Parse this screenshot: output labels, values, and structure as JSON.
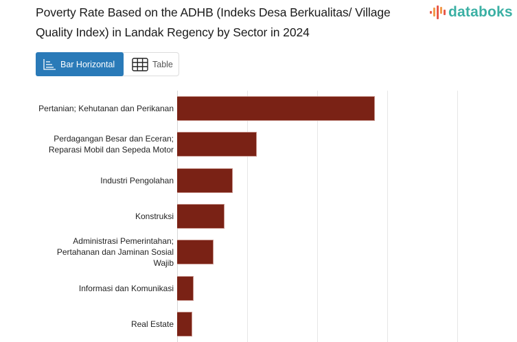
{
  "header": {
    "title": "Poverty Rate Based on the ADHB (Indeks Desa Berkualitas/ Village Quality Index) in Landak Regency by Sector in 2024",
    "logo_text": "databoks"
  },
  "toggle": {
    "options": [
      {
        "label": "Bar Horizontal",
        "icon": "bar-chart-horizontal-icon",
        "active": true
      },
      {
        "label": "Table",
        "icon": "table-grid-icon",
        "active": false
      }
    ]
  },
  "colors": {
    "bar": "#7a2215",
    "accent": "#2a7ab8",
    "logo": "#3bb0a4"
  },
  "chart_data": {
    "type": "bar",
    "orientation": "horizontal",
    "title": "Poverty Rate Based on the ADHB (Indeks Desa Berkualitas/ Village Quality Index) in Landak Regency by Sector in 2024",
    "categories": [
      "Pertanian; Kehutanan dan Perikanan",
      "Perdagangan Besar dan Eceran; Reparasi Mobil dan Sepeda Motor",
      "Industri Pengolahan",
      "Konstruksi",
      "Administrasi Pemerintahan; Pertahanan dan Jaminan Sosial Wajib",
      "Informasi dan Komunikasi",
      "Real Estate"
    ],
    "values": [
      2.82,
      1.14,
      0.79,
      0.68,
      0.52,
      0.24,
      0.22
    ],
    "value_unit_note": "relative gridline units (tick labels not visible)",
    "xlabel": "",
    "ylabel": "",
    "xlim": [
      0,
      4.8
    ],
    "gridlines": [
      0,
      1,
      2,
      3,
      4
    ],
    "grid": true,
    "legend": null
  }
}
